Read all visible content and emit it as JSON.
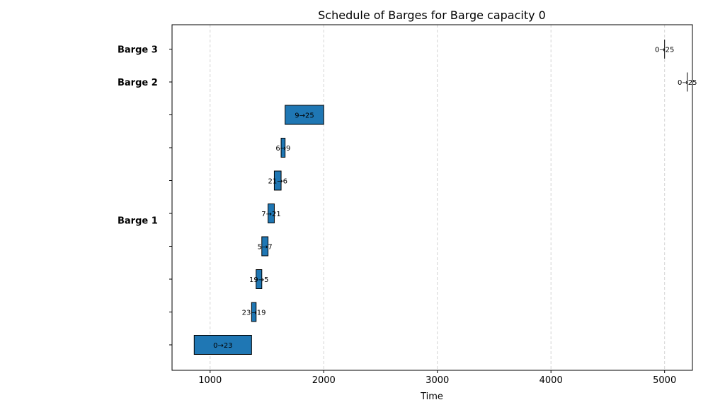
{
  "chart_data": {
    "type": "gantt",
    "title": "Schedule of Barges for Barge capacity 0",
    "xlabel": "Time",
    "ylabel": "",
    "xlim": [
      665,
      5245
    ],
    "xticks": [
      1000,
      2000,
      3000,
      4000,
      5000
    ],
    "grid": "x-dashed",
    "bar_color": "#1f77b4",
    "rows": [
      {
        "group": "Barge 1",
        "label": "0→23",
        "start": 860,
        "end": 1365
      },
      {
        "group": "Barge 1",
        "label": "23→19",
        "start": 1365,
        "end": 1405
      },
      {
        "group": "Barge 1",
        "label": "19→5",
        "start": 1405,
        "end": 1455
      },
      {
        "group": "Barge 1",
        "label": "5→7",
        "start": 1455,
        "end": 1510
      },
      {
        "group": "Barge 1",
        "label": "7→21",
        "start": 1510,
        "end": 1565
      },
      {
        "group": "Barge 1",
        "label": "21→6",
        "start": 1565,
        "end": 1625
      },
      {
        "group": "Barge 1",
        "label": "6→9",
        "start": 1625,
        "end": 1660
      },
      {
        "group": "Barge 1",
        "label": "9→25",
        "start": 1660,
        "end": 2000
      },
      {
        "group": "Barge 2",
        "label": "0→25",
        "start": 5200,
        "end": 5200
      },
      {
        "group": "Barge 3",
        "label": "0→25",
        "start": 5000,
        "end": 5000
      }
    ],
    "groups": [
      {
        "name": "Barge 1",
        "row_index": 3.8
      },
      {
        "name": "Barge 2",
        "row_index": 8
      },
      {
        "name": "Barge 3",
        "row_index": 9
      }
    ]
  }
}
